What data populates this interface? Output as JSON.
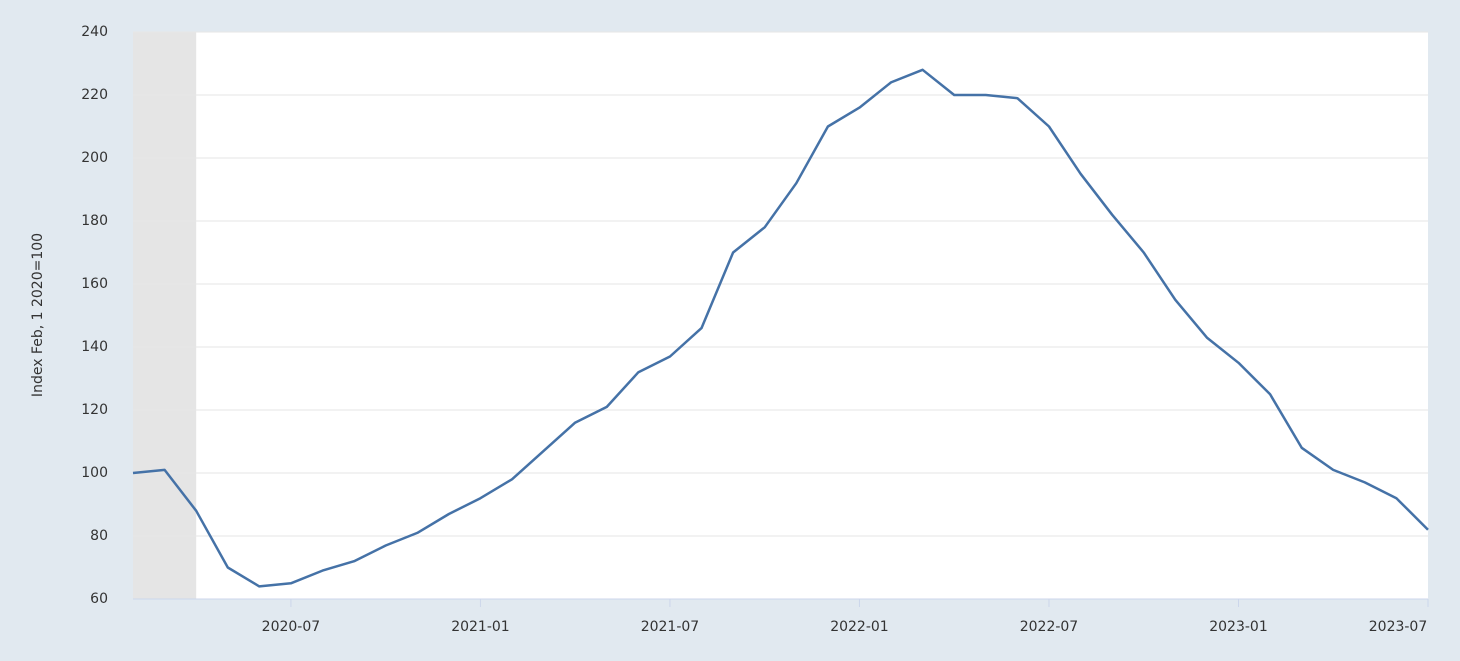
{
  "chart_data": {
    "type": "line",
    "y_label": "Index Feb, 1 2020=100",
    "x": [
      "2020-02",
      "2020-03",
      "2020-04",
      "2020-05",
      "2020-06",
      "2020-07",
      "2020-08",
      "2020-09",
      "2020-10",
      "2020-11",
      "2020-12",
      "2021-01",
      "2021-02",
      "2021-03",
      "2021-04",
      "2021-05",
      "2021-06",
      "2021-07",
      "2021-08",
      "2021-09",
      "2021-10",
      "2021-11",
      "2021-12",
      "2022-01",
      "2022-02",
      "2022-03",
      "2022-04",
      "2022-05",
      "2022-06",
      "2022-07",
      "2022-08",
      "2022-09",
      "2022-10",
      "2022-11",
      "2022-12",
      "2023-01",
      "2023-02",
      "2023-03",
      "2023-04",
      "2023-05",
      "2023-06",
      "2023-07"
    ],
    "series": [
      {
        "color": "#4572a7",
        "values": [
          100,
          101,
          88,
          70,
          64,
          65,
          69,
          72,
          77,
          81,
          87,
          92,
          98,
          107,
          116,
          121,
          132,
          137,
          146,
          170,
          178,
          192,
          210,
          216,
          224,
          228,
          220,
          220,
          219,
          210,
          195,
          182,
          170,
          155,
          143,
          135,
          125,
          108,
          101,
          97,
          92,
          82
        ]
      }
    ],
    "xlim": [
      "2020-02",
      "2023-07"
    ],
    "xticks": [
      "2020-07",
      "2021-01",
      "2021-07",
      "2022-01",
      "2022-07",
      "2023-01",
      "2023-07"
    ],
    "ylim": [
      60,
      240
    ],
    "yticks": [
      60,
      80,
      100,
      120,
      140,
      160,
      180,
      200,
      220,
      240
    ],
    "grid": true,
    "recession": [
      "2020-02",
      "2020-04"
    ]
  }
}
